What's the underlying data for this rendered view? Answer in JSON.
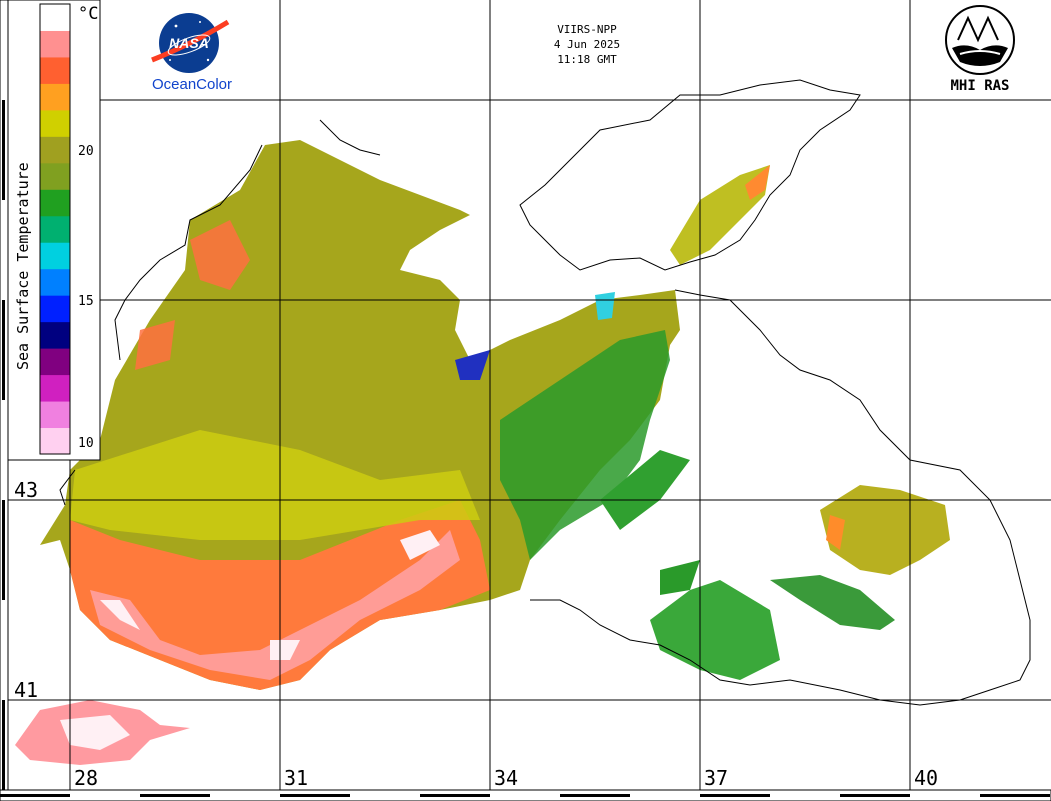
{
  "header": {
    "satellite": "VIIRS-NPP",
    "date": "4 Jun 2025",
    "time": "11:18 GMT"
  },
  "logos": {
    "nasa_text": "NASA",
    "oceancolor_text": "OceanColor",
    "mhi_text": "MHI RAS"
  },
  "legend": {
    "title": "Sea Surface Temperature",
    "unit": "°C",
    "ticks": [
      "20",
      "15",
      "10"
    ],
    "range": [
      10,
      25
    ],
    "colors": [
      "#ffd0f0",
      "#f080e0",
      "#d020c0",
      "#800080",
      "#000080",
      "#0020ff",
      "#0080ff",
      "#00d0e0",
      "#00b070",
      "#20a020",
      "#80a020",
      "#a0a020",
      "#d0d000",
      "#ffa020",
      "#ff6030",
      "#ff9090",
      "#ffffff"
    ]
  },
  "graticule": {
    "latitudes": [
      "43",
      "41"
    ],
    "longitudes": [
      "28",
      "31",
      "34",
      "37",
      "40"
    ]
  },
  "colors": {
    "land": "#ffffff",
    "grid": "#000000",
    "warm": "#ff8040",
    "mid": "#a8a818",
    "cool": "#40a830"
  }
}
